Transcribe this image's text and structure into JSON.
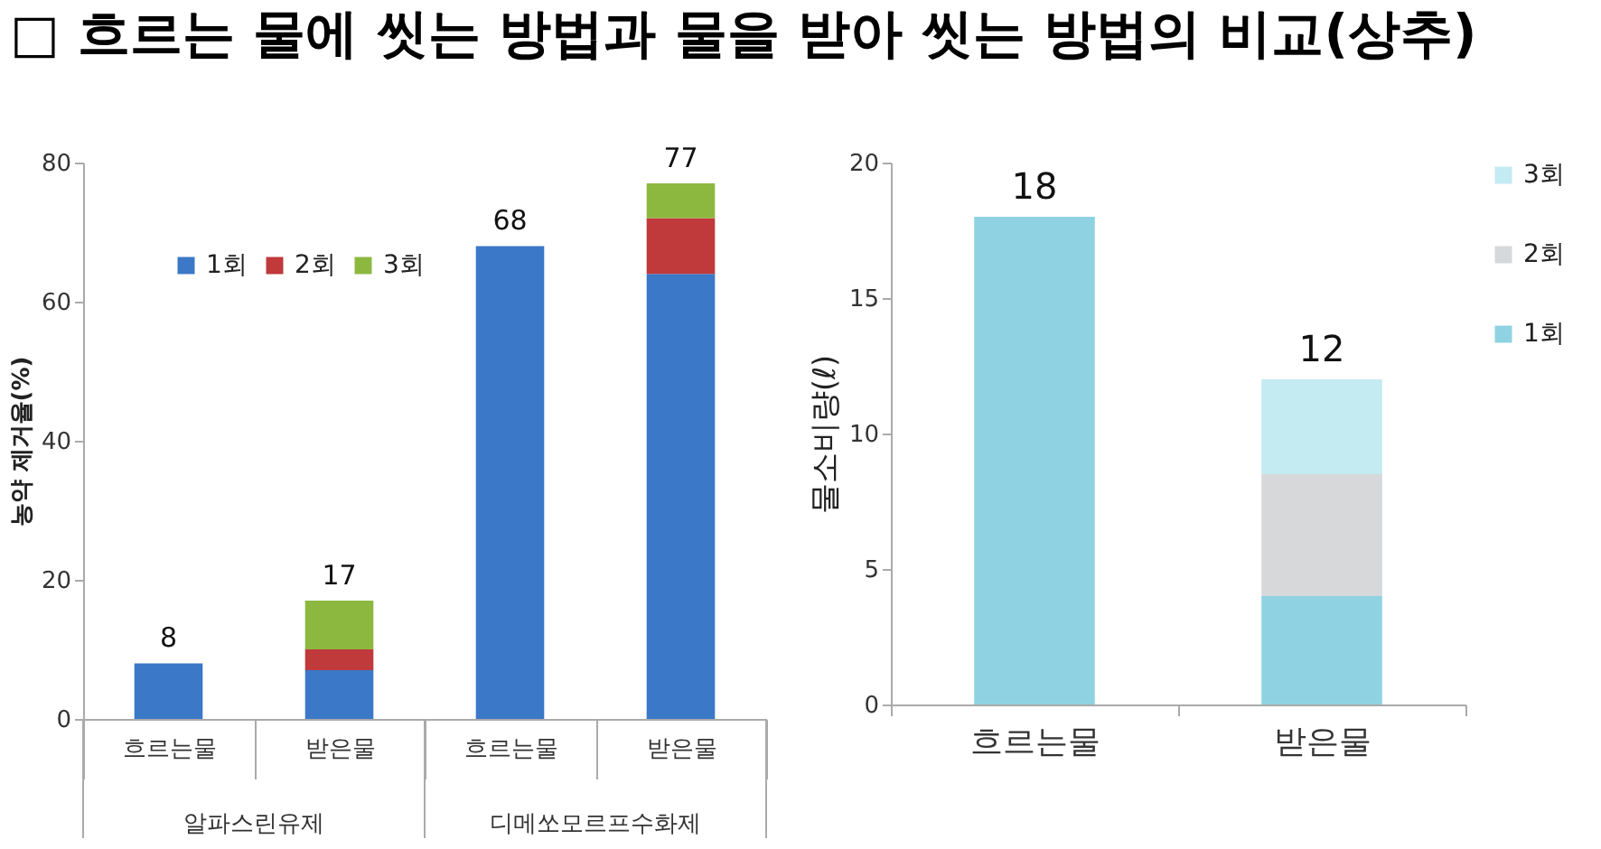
{
  "chart_data": [
    {
      "type": "bar",
      "title": "□ 흐르는 물에 씻는 방법과 물을 받아 씻는 방법의 비교(상추)",
      "ylabel": "농약 제거율(%)",
      "categories": [
        "흐르는물",
        "받은물",
        "흐르는물",
        "받은물"
      ],
      "annotations": [
        "알파스린유제",
        "디메쏘모르프수화제"
      ],
      "stacked": true,
      "series": [
        {
          "name": "1회",
          "color": "#3b78c8",
          "values": [
            8,
            7,
            68,
            64
          ]
        },
        {
          "name": "2회",
          "color": "#c0393b",
          "values": [
            null,
            3,
            null,
            8
          ]
        },
        {
          "name": "3회",
          "color": "#8db840",
          "values": [
            null,
            7,
            null,
            5
          ]
        }
      ],
      "ylim": [
        0,
        80
      ],
      "yticks": [
        0,
        20,
        40,
        60,
        80
      ],
      "totals": [
        "8",
        "17",
        "68",
        "77"
      ],
      "legend": "top left"
    },
    {
      "type": "bar",
      "ylabel": "물소비량(ℓ)",
      "categories": [
        "흐르는물",
        "받은물"
      ],
      "stacked": true,
      "series": [
        {
          "name": "1회",
          "color": "#8fd3e2",
          "values": [
            18,
            4
          ]
        },
        {
          "name": "2회",
          "color": "#d6d8da",
          "values": [
            null,
            4.5
          ]
        },
        {
          "name": "3회",
          "color": "#c4eaf2",
          "values": [
            null,
            3.5
          ]
        }
      ],
      "ylim": [
        0,
        20
      ],
      "yticks": [
        0,
        5,
        10,
        15,
        20
      ],
      "totals": [
        "18",
        "12"
      ],
      "legend": "right"
    }
  ]
}
